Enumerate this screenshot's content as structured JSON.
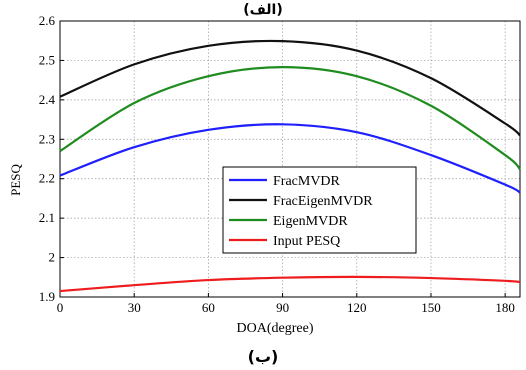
{
  "captions": {
    "top": "(الف)",
    "bottom": "(ب)"
  },
  "chart_data": {
    "type": "line",
    "title": "",
    "xlabel": "DOA(degree)",
    "ylabel": "PESQ",
    "xlim": [
      0,
      186
    ],
    "ylim": [
      1.9,
      2.6
    ],
    "xticks": [
      0,
      30,
      60,
      90,
      120,
      150,
      180
    ],
    "yticks": [
      1.9,
      2,
      2.1,
      2.2,
      2.3,
      2.4,
      2.5,
      2.6
    ],
    "xtick_labels": [
      "0",
      "30",
      "60",
      "90",
      "120",
      "150",
      "180"
    ],
    "ytick_labels": [
      "1.9",
      "2",
      "2.1",
      "2.2",
      "2.3",
      "2.4",
      "2.5",
      "2.6"
    ],
    "grid": true,
    "legend_position": "right, lower-middle",
    "series": [
      {
        "name": "FracMVDR",
        "color": "#1f1fff",
        "x": [
          0,
          30,
          60,
          90,
          120,
          150,
          180,
          186
        ],
        "y": [
          2.208,
          2.28,
          2.324,
          2.338,
          2.318,
          2.26,
          2.185,
          2.165
        ]
      },
      {
        "name": "FracEigenMVDR",
        "color": "#111111",
        "x": [
          0,
          30,
          60,
          90,
          120,
          150,
          180,
          186
        ],
        "y": [
          2.408,
          2.49,
          2.537,
          2.549,
          2.525,
          2.455,
          2.34,
          2.31
        ]
      },
      {
        "name": "EigenMVDR",
        "color": "#1e8c1e",
        "x": [
          0,
          30,
          60,
          90,
          120,
          150,
          180,
          186
        ],
        "y": [
          2.27,
          2.392,
          2.46,
          2.483,
          2.46,
          2.385,
          2.26,
          2.224
        ]
      },
      {
        "name": "Input PESQ",
        "color": "#ee1c1c",
        "x": [
          0,
          30,
          60,
          90,
          120,
          150,
          180,
          186
        ],
        "y": [
          1.915,
          1.93,
          1.943,
          1.949,
          1.951,
          1.948,
          1.941,
          1.938
        ]
      }
    ]
  }
}
